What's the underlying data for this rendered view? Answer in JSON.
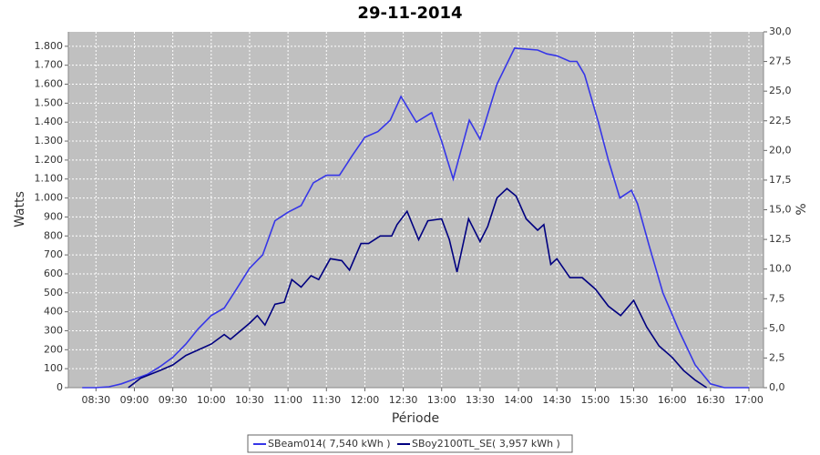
{
  "chart_data": {
    "type": "line",
    "title": "29-11-2014",
    "x_label": "Période",
    "y_label": "Watts",
    "y2_label": "%",
    "xlim": [
      8.14,
      17.19
    ],
    "xticks": [
      {
        "value": 8.5,
        "label": "08:30"
      },
      {
        "value": 9,
        "label": "09:00"
      },
      {
        "value": 9.5,
        "label": "09:30"
      },
      {
        "value": 10,
        "label": "10:00"
      },
      {
        "value": 10.5,
        "label": "10:30"
      },
      {
        "value": 11,
        "label": "11:00"
      },
      {
        "value": 11.5,
        "label": "11:30"
      },
      {
        "value": 12,
        "label": "12:00"
      },
      {
        "value": 12.5,
        "label": "12:30"
      },
      {
        "value": 13,
        "label": "13:00"
      },
      {
        "value": 13.5,
        "label": "13:30"
      },
      {
        "value": 14,
        "label": "14:00"
      },
      {
        "value": 14.5,
        "label": "14:30"
      },
      {
        "value": 15,
        "label": "15:00"
      },
      {
        "value": 15.5,
        "label": "15:30"
      },
      {
        "value": 16,
        "label": "16:00"
      },
      {
        "value": 16.5,
        "label": "16:30"
      },
      {
        "value": 17,
        "label": "17:00"
      }
    ],
    "ylim": [
      0,
      1876
    ],
    "yticks": [
      0,
      100,
      200,
      300,
      400,
      500,
      600,
      700,
      800,
      900,
      {
        "value": 1000,
        "label": "1.000"
      },
      {
        "value": 1100,
        "label": "1.100"
      },
      {
        "value": 1200,
        "label": "1.200"
      },
      {
        "value": 1300,
        "label": "1.300"
      },
      {
        "value": 1400,
        "label": "1.400"
      },
      {
        "value": 1500,
        "label": "1.500"
      },
      {
        "value": 1600,
        "label": "1.600"
      },
      {
        "value": 1700,
        "label": "1.700"
      },
      {
        "value": 1800,
        "label": "1.800"
      }
    ],
    "y2lim": [
      0,
      30
    ],
    "y2ticks": [
      {
        "value": 0,
        "label": "0,0"
      },
      {
        "value": 2.5,
        "label": "2,5"
      },
      {
        "value": 5,
        "label": "5,0"
      },
      {
        "value": 7.5,
        "label": "7,5"
      },
      {
        "value": 10,
        "label": "10,0"
      },
      {
        "value": 12.5,
        "label": "12,5"
      },
      {
        "value": 15,
        "label": "15,0"
      },
      {
        "value": 17.5,
        "label": "17,5"
      },
      {
        "value": 20,
        "label": "20,0"
      },
      {
        "value": 22.5,
        "label": "22,5"
      },
      {
        "value": 25,
        "label": "25,0"
      },
      {
        "value": 27.5,
        "label": "27,5"
      },
      {
        "value": 30,
        "label": "30,0"
      }
    ],
    "grid": true,
    "series": [
      {
        "name": "SBeam014( 7,540 kWh )",
        "color": "#3636e8",
        "x": [
          8.32,
          8.5,
          8.67,
          8.83,
          9.0,
          9.17,
          9.33,
          9.5,
          9.67,
          9.83,
          10.0,
          10.17,
          10.33,
          10.5,
          10.67,
          10.83,
          11.0,
          11.17,
          11.33,
          11.5,
          11.67,
          11.83,
          12.0,
          12.17,
          12.33,
          12.47,
          12.67,
          12.87,
          13.0,
          13.15,
          13.36,
          13.5,
          13.72,
          13.95,
          14.25,
          14.37,
          14.5,
          14.67,
          14.76,
          14.86,
          15.04,
          15.17,
          15.32,
          15.47,
          15.55,
          15.7,
          15.88,
          16.09,
          16.3,
          16.5,
          16.68,
          17.0
        ],
        "values": [
          0,
          0,
          5,
          20,
          45,
          70,
          110,
          160,
          230,
          310,
          380,
          420,
          520,
          630,
          700,
          880,
          925,
          960,
          1080,
          1120,
          1120,
          1220,
          1320,
          1350,
          1410,
          1535,
          1400,
          1450,
          1300,
          1100,
          1410,
          1310,
          1600,
          1790,
          1780,
          1760,
          1750,
          1720,
          1720,
          1650,
          1400,
          1200,
          1000,
          1040,
          970,
          750,
          500,
          300,
          120,
          20,
          0,
          0
        ]
      },
      {
        "name": "SBoy2100TL_SE( 3,957 kWh )",
        "color": "#000080",
        "x": [
          8.92,
          9.08,
          9.33,
          9.5,
          9.67,
          10.0,
          10.17,
          10.25,
          10.5,
          10.6,
          10.7,
          10.83,
          10.95,
          11.05,
          11.17,
          11.3,
          11.4,
          11.55,
          11.7,
          11.8,
          11.95,
          12.05,
          12.2,
          12.35,
          12.42,
          12.55,
          12.7,
          12.82,
          13.0,
          13.1,
          13.2,
          13.35,
          13.5,
          13.6,
          13.72,
          13.85,
          13.97,
          14.1,
          14.25,
          14.33,
          14.42,
          14.5,
          14.67,
          14.83,
          15.0,
          15.17,
          15.33,
          15.5,
          15.67,
          15.83,
          16.0,
          16.15,
          16.3,
          16.45
        ],
        "values": [
          0,
          50,
          90,
          120,
          170,
          230,
          280,
          255,
          340,
          380,
          330,
          440,
          450,
          570,
          530,
          590,
          570,
          680,
          670,
          620,
          760,
          760,
          800,
          800,
          860,
          930,
          780,
          880,
          890,
          780,
          610,
          890,
          770,
          850,
          1000,
          1050,
          1010,
          890,
          830,
          860,
          650,
          680,
          580,
          580,
          520,
          430,
          380,
          460,
          320,
          220,
          160,
          90,
          40,
          0
        ]
      }
    ]
  }
}
